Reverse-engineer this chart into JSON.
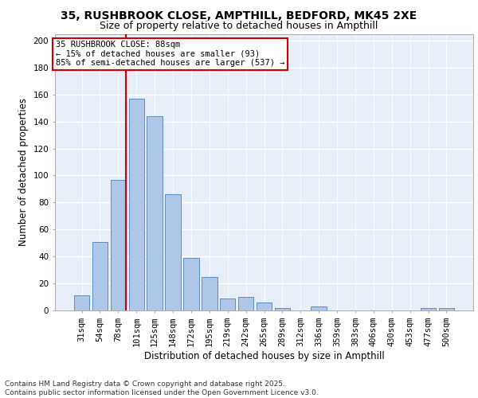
{
  "title_line1": "35, RUSHBROOK CLOSE, AMPTHILL, BEDFORD, MK45 2XE",
  "title_line2": "Size of property relative to detached houses in Ampthill",
  "xlabel": "Distribution of detached houses by size in Ampthill",
  "ylabel": "Number of detached properties",
  "categories": [
    "31sqm",
    "54sqm",
    "78sqm",
    "101sqm",
    "125sqm",
    "148sqm",
    "172sqm",
    "195sqm",
    "219sqm",
    "242sqm",
    "265sqm",
    "289sqm",
    "312sqm",
    "336sqm",
    "359sqm",
    "383sqm",
    "406sqm",
    "430sqm",
    "453sqm",
    "477sqm",
    "500sqm"
  ],
  "values": [
    11,
    51,
    97,
    157,
    144,
    86,
    39,
    25,
    9,
    10,
    6,
    2,
    0,
    3,
    0,
    0,
    0,
    0,
    0,
    2,
    2
  ],
  "bar_color": "#aec6e8",
  "bar_edge_color": "#5a8fc0",
  "vline_color": "#cc0000",
  "vline_bar_index": 2,
  "annotation_text": "35 RUSHBROOK CLOSE: 88sqm\n← 15% of detached houses are smaller (93)\n85% of semi-detached houses are larger (537) →",
  "annotation_box_color": "#ffffff",
  "annotation_box_edge": "#cc0000",
  "ylim": [
    0,
    205
  ],
  "yticks": [
    0,
    20,
    40,
    60,
    80,
    100,
    120,
    140,
    160,
    180,
    200
  ],
  "background_color": "#e8eef8",
  "grid_color": "#ffffff",
  "footer_text": "Contains HM Land Registry data © Crown copyright and database right 2025.\nContains public sector information licensed under the Open Government Licence v3.0.",
  "title_fontsize": 10,
  "subtitle_fontsize": 9,
  "axis_label_fontsize": 8.5,
  "tick_fontsize": 7.5,
  "annotation_fontsize": 7.5,
  "footer_fontsize": 6.5
}
